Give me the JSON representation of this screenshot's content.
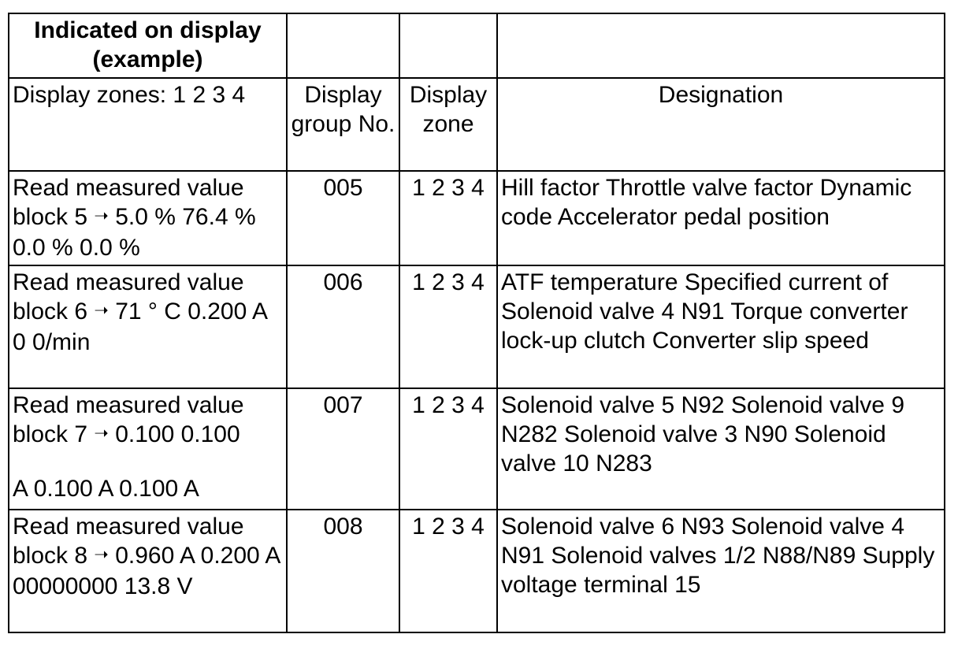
{
  "header": {
    "title": "Indicated on display (example)",
    "col1": "Display zones: 1 2 3 4",
    "col2": "Display group No.",
    "col3": "Display zone",
    "col4": "Designation"
  },
  "rows": [
    {
      "display_prefix": "Read measured value block 5",
      "display_values": "5.0 % 76.4 % 0.0 % 0.0 %",
      "group": "005",
      "zone": "1 2 3 4",
      "designation": "Hill factor Throttle valve factor Dynamic code Accelerator pedal position"
    },
    {
      "display_prefix": "Read measured value block 6",
      "display_values": "71 ° C 0.200 A 0 0/min",
      "group": "006",
      "zone": "1 2 3 4",
      "designation": "ATF temperature Specified current of Solenoid valve 4 N91 Torque converter lock-up clutch Converter slip speed"
    },
    {
      "display_prefix": "Read measured value block 7",
      "display_values": "0.100 0.100",
      "display_values_2": "A 0.100 A 0.100 A",
      "group": "007",
      "zone": "1 2 3 4",
      "designation": "Solenoid valve 5 N92 Solenoid valve 9 N282 Solenoid valve 3 N90 Solenoid valve 10 N283"
    },
    {
      "display_prefix": "Read measured value block 8",
      "display_values": "0.960 A 0.200 A 00000000 13.8 V",
      "group": "008",
      "zone": "1 2 3 4",
      "designation": "Solenoid valve 6 N93 Solenoid valve 4 N91 Solenoid valves 1/2 N88/N89 Supply voltage terminal 15"
    }
  ],
  "icons": {
    "arrow": "right-arrow-icon"
  }
}
